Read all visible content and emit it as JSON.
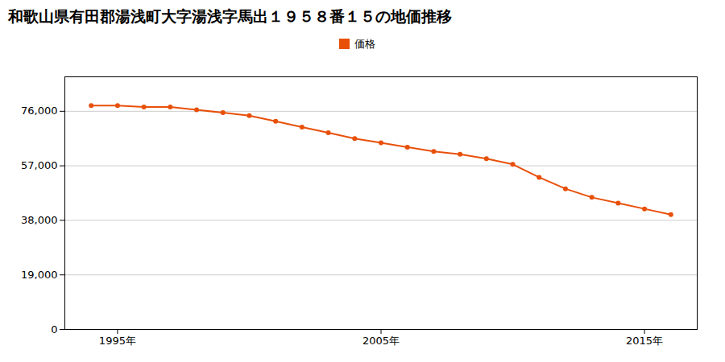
{
  "chart_data": {
    "type": "line",
    "title": "和歌山県有田郡湯浅町大字湯浅字馬出１９５８番１５の地価推移",
    "x": [
      1994,
      1995,
      1996,
      1997,
      1998,
      1999,
      2000,
      2001,
      2002,
      2003,
      2004,
      2005,
      2006,
      2007,
      2008,
      2009,
      2010,
      2011,
      2012,
      2013,
      2014,
      2015,
      2016
    ],
    "series": [
      {
        "name": "価格",
        "color": "#e8500a",
        "values": [
          78000,
          78000,
          77500,
          77500,
          76500,
          75500,
          74500,
          72500,
          70500,
          68500,
          66500,
          65000,
          63500,
          62000,
          61000,
          59500,
          57500,
          53000,
          49000,
          46000,
          44000,
          42000,
          40000
        ]
      }
    ],
    "xlim": [
      1993.0,
      2017.0
    ],
    "xticks": [
      {
        "value": 1995,
        "label": "1995年"
      },
      {
        "value": 2005,
        "label": "2005年"
      },
      {
        "value": 2015,
        "label": "2015年"
      }
    ],
    "ylim": [
      0,
      88000
    ],
    "yticks": [
      0,
      {
        "value": 19000,
        "label": "19,000"
      },
      {
        "value": 38000,
        "label": "38,000"
      },
      {
        "value": 57000,
        "label": "57,000"
      },
      {
        "value": 76000,
        "label": "76,000"
      }
    ],
    "grid": "y",
    "legend": "top",
    "marker": "circle"
  }
}
